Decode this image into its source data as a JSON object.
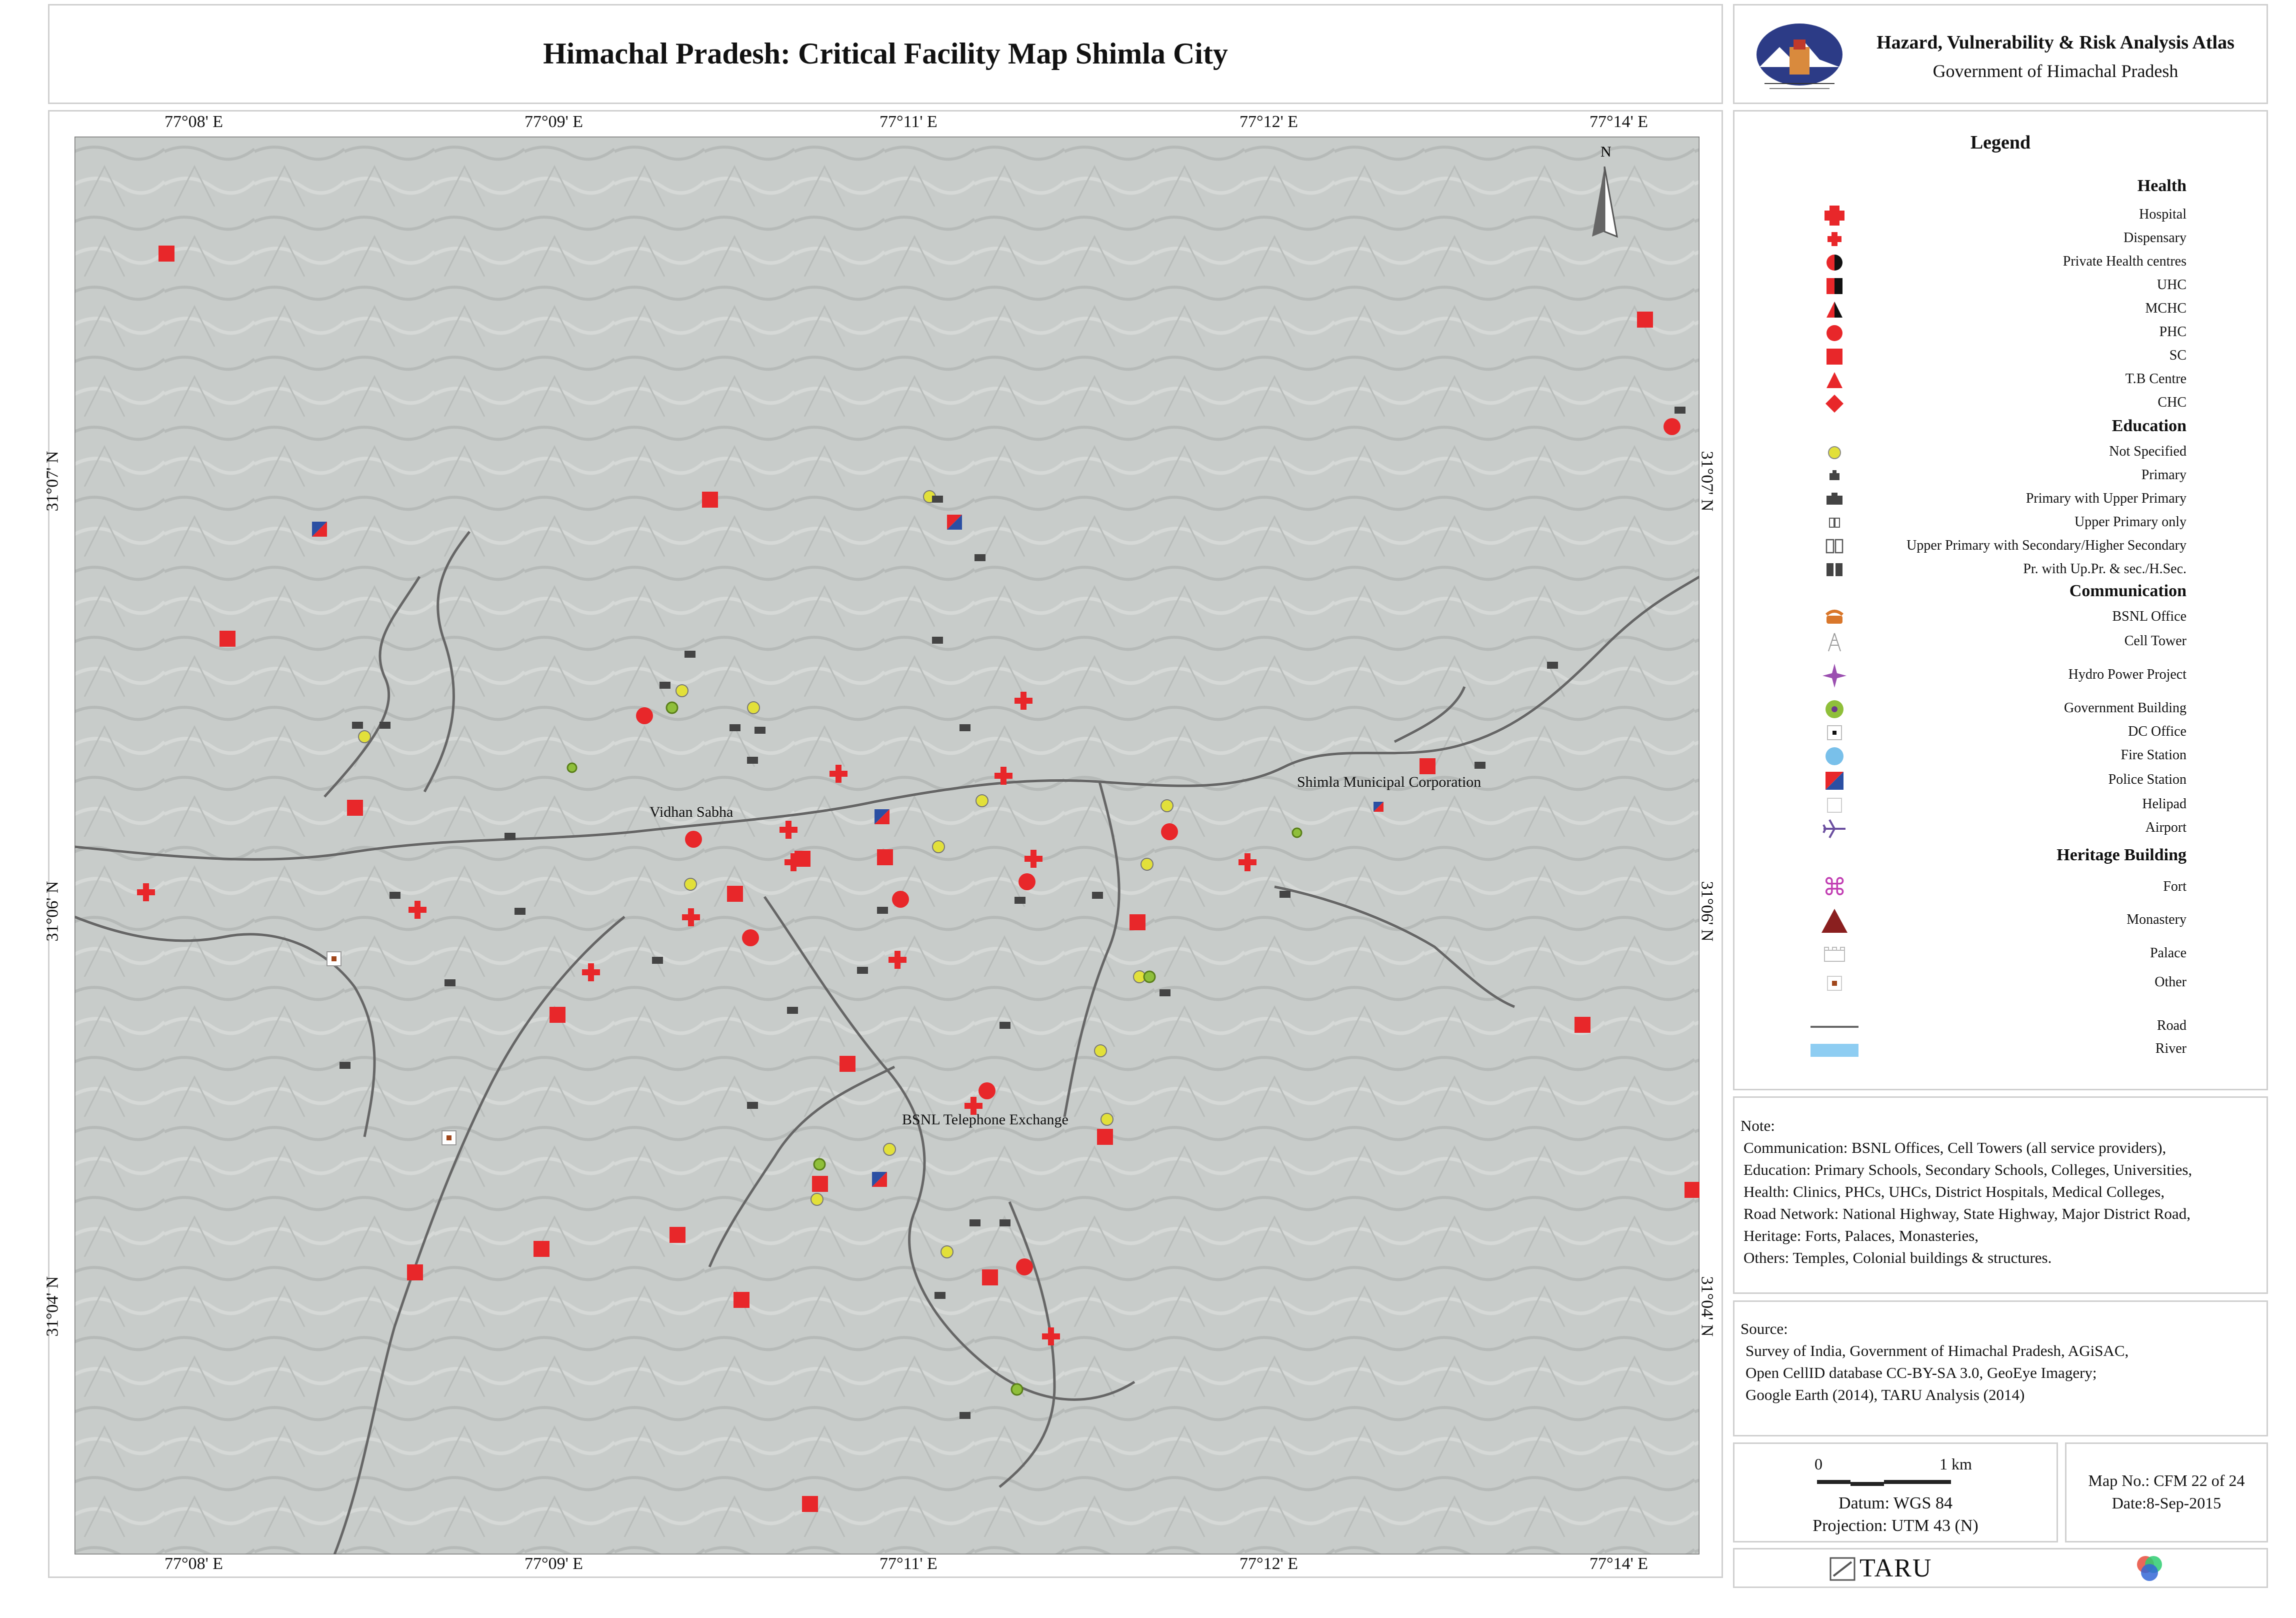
{
  "title": "Himachal Pradesh: Critical Facility Map Shimla City",
  "atlas": {
    "title": "Hazard, Vulnerability & Risk Analysis Atlas",
    "subtitle": "Government of Himachal Pradesh",
    "emblem_icon": "himachal-emblem-icon"
  },
  "map": {
    "lon_labels": [
      "77°08' E",
      "77°09' E",
      "77°11' E",
      "77°12' E",
      "77°14' E"
    ],
    "lat_labels": [
      "31°07' N",
      "31°06' N",
      "31°04' N"
    ],
    "north_label": "N",
    "place_labels": [
      "Vidhan Sabha",
      "Shimla Municipal Corporation",
      "BSNL Telephone Exchange"
    ],
    "colors": {
      "background": "#c9cdcb",
      "road": "#6a6a6a",
      "health": "#e8272a",
      "education_ns": "#e2e03a",
      "police_blue": "#2b4fa3"
    }
  },
  "legend": {
    "title": "Legend",
    "sections": [
      {
        "heading": "Health",
        "items": [
          {
            "label": "Hospital",
            "icon": "red-cross-large-icon"
          },
          {
            "label": "Dispensary",
            "icon": "red-cross-small-icon"
          },
          {
            "label": "Private Health centres",
            "icon": "half-red-black-circle-icon"
          },
          {
            "label": "UHC",
            "icon": "half-red-black-square-icon"
          },
          {
            "label": "MCHC",
            "icon": "half-red-black-triangle-icon"
          },
          {
            "label": "PHC",
            "icon": "red-circle-icon"
          },
          {
            "label": "SC",
            "icon": "red-square-icon"
          },
          {
            "label": "T.B Centre",
            "icon": "red-triangle-icon"
          },
          {
            "label": "CHC",
            "icon": "red-diamond-icon"
          }
        ]
      },
      {
        "heading": "Education",
        "items": [
          {
            "label": "Not Specified",
            "icon": "yellow-dot-icon"
          },
          {
            "label": "Primary",
            "icon": "school-small-icon"
          },
          {
            "label": "Primary with Upper Primary",
            "icon": "school-large-icon"
          },
          {
            "label": "Upper Primary only",
            "icon": "book-outline-small-icon"
          },
          {
            "label": "Upper Primary with Secondary/Higher Secondary",
            "icon": "book-outline-icon"
          },
          {
            "label": "Pr. with Up.Pr. & sec./H.Sec.",
            "icon": "book-filled-icon"
          }
        ]
      },
      {
        "heading": "Communication",
        "items": [
          {
            "label": "BSNL Office",
            "icon": "telephone-icon"
          },
          {
            "label": "Cell Tower",
            "icon": "tower-icon"
          },
          {
            "label": "Hydro Power Project",
            "icon": "purple-star-icon"
          },
          {
            "label": "Government Building",
            "icon": "green-ring-icon"
          },
          {
            "label": "DC Office",
            "icon": "dc-office-icon"
          },
          {
            "label": "Fire Station",
            "icon": "blue-circle-icon"
          },
          {
            "label": "Police Station",
            "icon": "police-square-icon"
          },
          {
            "label": "Helipad",
            "icon": "helipad-icon"
          },
          {
            "label": "Airport",
            "icon": "airplane-icon"
          }
        ]
      },
      {
        "heading": "Heritage Building",
        "items": [
          {
            "label": "Fort",
            "icon": "fort-icon"
          },
          {
            "label": "Monastery",
            "icon": "brown-triangle-icon"
          },
          {
            "label": "Palace",
            "icon": "palace-icon"
          },
          {
            "label": "Other",
            "icon": "other-heritage-icon"
          },
          {
            "label": "Road",
            "icon": "road-line-icon"
          },
          {
            "label": "River",
            "icon": "river-fill-icon"
          }
        ]
      }
    ]
  },
  "note": {
    "label": "Note:",
    "lines": [
      "Communication: BSNL Offices, Cell Towers (all service providers),",
      "Education:  Primary Schools, Secondary Schools, Colleges, Universities,",
      "Health: Clinics, PHCs, UHCs, District Hospitals, Medical Colleges,",
      "Road Network: National Highway, State Highway, Major District Road,",
      "Heritage: Forts, Palaces, Monasteries,",
      "Others: Temples, Colonial buildings & structures."
    ]
  },
  "source": {
    "label": "Source:",
    "lines": [
      "Survey of India, Government of Himachal Pradesh, AGiSAC,",
      "Open CellID database CC-BY-SA 3.0, GeoEye Imagery;",
      "Google Earth (2014), TARU Analysis (2014)"
    ]
  },
  "scale": {
    "zero": "0",
    "dist": "1 km",
    "datum": "Datum: WGS 84",
    "projection": "Projection: UTM 43 (N)"
  },
  "mapinfo": {
    "number": "Map No.: CFM 22 of 24",
    "date": "Date:8-Sep-2015"
  },
  "logos": {
    "taru": "TARU",
    "taru_icon": "taru-logo-icon",
    "partner_icon": "rgb-circles-logo-icon"
  }
}
